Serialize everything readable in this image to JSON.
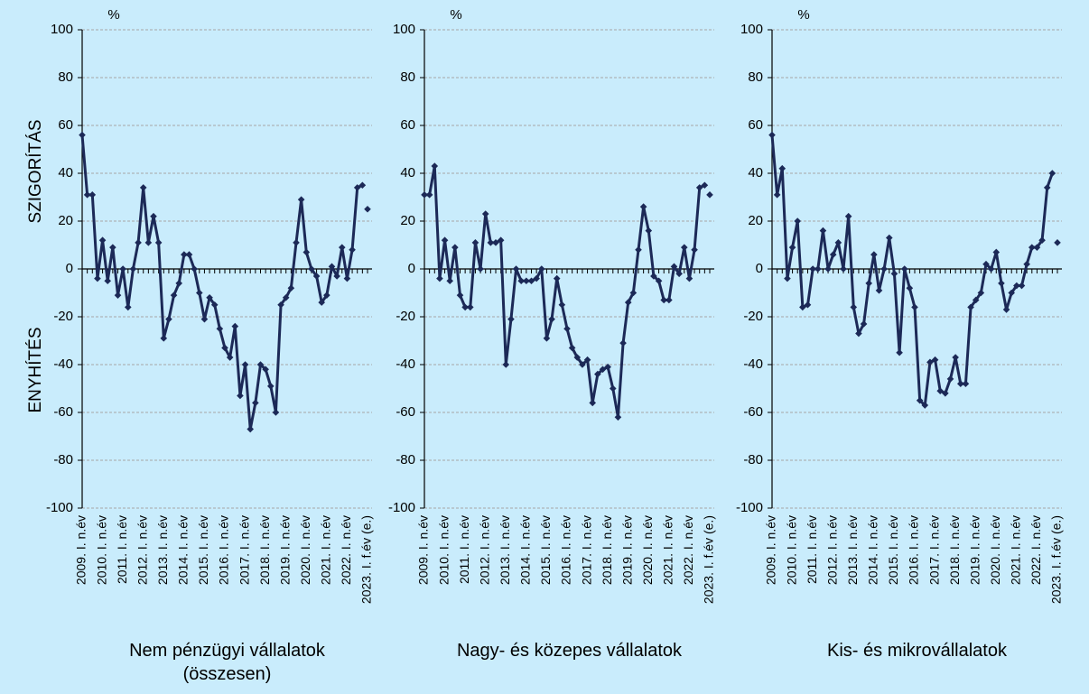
{
  "axis_labels": {
    "upper": "SZIGORÍTÁS",
    "lower": "ENYHÍTÉS"
  },
  "chart_data": [
    {
      "type": "line",
      "title": "Nem pénzügyi vállalatok (összesen)",
      "unit": "%",
      "categories": [
        "2009. I. n.év",
        null,
        null,
        null,
        "2010. I. n.év",
        null,
        null,
        null,
        "2011. I. n.év",
        null,
        null,
        null,
        "2012. I. n.év",
        null,
        null,
        null,
        "2013. I. n.év",
        null,
        null,
        null,
        "2014. I. n.év",
        null,
        null,
        null,
        "2015. I. n.év",
        null,
        null,
        null,
        "2016. I. n.év",
        null,
        null,
        null,
        "2017. I. n.év",
        null,
        null,
        null,
        "2018. I. n.év",
        null,
        null,
        null,
        "2019. I. n.év",
        null,
        null,
        null,
        "2020. I. n.év",
        null,
        null,
        null,
        "2021. I. n.év",
        null,
        null,
        null,
        "2022. I. n.év",
        null,
        null,
        null,
        "2023. I. f.év (e.)"
      ],
      "series": [
        {
          "color": "#1c2957",
          "line": true,
          "values": [
            56,
            31,
            31,
            -4,
            12,
            -5,
            9,
            -11,
            0,
            -16,
            0,
            11,
            34,
            11,
            22,
            11,
            -29,
            -21,
            -11,
            -6,
            6,
            6,
            0,
            -10,
            -21,
            -12,
            -15,
            -25,
            -33,
            -37,
            -24,
            -53,
            -40,
            -67,
            -56,
            -40,
            -42,
            -49,
            -60,
            -15,
            -12,
            -8,
            11,
            29,
            7,
            0,
            -3,
            -14,
            -11,
            1,
            -3,
            9,
            -4,
            8,
            34,
            35,
            null
          ]
        },
        {
          "color": "#1c2957",
          "line": false,
          "values": [
            null,
            null,
            null,
            null,
            null,
            null,
            null,
            null,
            null,
            null,
            null,
            null,
            null,
            null,
            null,
            null,
            null,
            null,
            null,
            null,
            null,
            null,
            null,
            null,
            null,
            null,
            null,
            null,
            null,
            null,
            null,
            null,
            null,
            null,
            null,
            null,
            null,
            null,
            null,
            null,
            null,
            null,
            null,
            null,
            null,
            null,
            null,
            null,
            null,
            null,
            null,
            null,
            null,
            null,
            null,
            null,
            25
          ]
        }
      ],
      "ylim": [
        -100,
        100
      ],
      "yticks": [
        -100,
        -80,
        -60,
        -40,
        -20,
        0,
        20,
        40,
        60,
        80,
        100
      ],
      "grid": true
    },
    {
      "type": "line",
      "title": "Nagy- és közepes vállalatok",
      "unit": "%",
      "categories": [
        "2009. I. n.év",
        null,
        null,
        null,
        "2010. I. n.év",
        null,
        null,
        null,
        "2011. I. n.év",
        null,
        null,
        null,
        "2012. I. n.év",
        null,
        null,
        null,
        "2013. I. n.év",
        null,
        null,
        null,
        "2014. I. n.év",
        null,
        null,
        null,
        "2015. I. n.év",
        null,
        null,
        null,
        "2016. I. n.év",
        null,
        null,
        null,
        "2017. I. n.év",
        null,
        null,
        null,
        "2018. I. n.év",
        null,
        null,
        null,
        "2019. I. n.év",
        null,
        null,
        null,
        "2020. I. n.év",
        null,
        null,
        null,
        "2021. I. n.év",
        null,
        null,
        null,
        "2022. I. n.év",
        null,
        null,
        null,
        "2023. I. f.év (e.)"
      ],
      "series": [
        {
          "color": "#1c2957",
          "line": true,
          "values": [
            31,
            31,
            43,
            -4,
            12,
            -5,
            9,
            -11,
            -16,
            -16,
            11,
            0,
            23,
            11,
            11,
            12,
            -40,
            -21,
            0,
            -5,
            -5,
            -5,
            -4,
            0,
            -29,
            -21,
            -4,
            -15,
            -25,
            -33,
            -37,
            -40,
            -38,
            -56,
            -44,
            -42,
            -41,
            -50,
            -62,
            -31,
            -14,
            -10,
            8,
            26,
            16,
            -3,
            -5,
            -13,
            -13,
            1,
            -2,
            9,
            -4,
            8,
            34,
            35,
            null
          ]
        },
        {
          "color": "#1c2957",
          "line": false,
          "values": [
            null,
            null,
            null,
            null,
            null,
            null,
            null,
            null,
            null,
            null,
            null,
            null,
            null,
            null,
            null,
            null,
            null,
            null,
            null,
            null,
            null,
            null,
            null,
            null,
            null,
            null,
            null,
            null,
            null,
            null,
            null,
            null,
            null,
            null,
            null,
            null,
            null,
            null,
            null,
            null,
            null,
            null,
            null,
            null,
            null,
            null,
            null,
            null,
            null,
            null,
            null,
            null,
            null,
            null,
            null,
            null,
            31
          ]
        }
      ],
      "ylim": [
        -100,
        100
      ],
      "yticks": [
        -100,
        -80,
        -60,
        -40,
        -20,
        0,
        20,
        40,
        60,
        80,
        100
      ],
      "grid": true
    },
    {
      "type": "line",
      "title": "Kis- és mikrovállalatok",
      "unit": "%",
      "categories": [
        "2009. I. n.év",
        null,
        null,
        null,
        "2010. I. n.év",
        null,
        null,
        null,
        "2011. I. n.év",
        null,
        null,
        null,
        "2012. I. n.év",
        null,
        null,
        null,
        "2013. I. n.év",
        null,
        null,
        null,
        "2014. I. n.év",
        null,
        null,
        null,
        "2015. I. n.év",
        null,
        null,
        null,
        "2016. I. n.év",
        null,
        null,
        null,
        "2017. I. n.év",
        null,
        null,
        null,
        "2018. I. n.év",
        null,
        null,
        null,
        "2019. I. n.év",
        null,
        null,
        null,
        "2020. I. n.év",
        null,
        null,
        null,
        "2021. I. n.év",
        null,
        null,
        null,
        "2022. I. n.év",
        null,
        null,
        null,
        "2023. I. f.év (e.)"
      ],
      "series": [
        {
          "color": "#1c2957",
          "line": true,
          "values": [
            56,
            31,
            42,
            -4,
            9,
            20,
            -16,
            -15,
            0,
            0,
            16,
            0,
            6,
            11,
            0,
            22,
            -16,
            -27,
            -23,
            -6,
            6,
            -9,
            0,
            13,
            -2,
            -35,
            0,
            -8,
            -16,
            -55,
            -57,
            -39,
            -38,
            -51,
            -52,
            -46,
            -37,
            -48,
            -48,
            -16,
            -13,
            -10,
            2,
            0,
            7,
            -6,
            -17,
            -10,
            -7,
            -7,
            2,
            9,
            9,
            12,
            34,
            40,
            null
          ]
        },
        {
          "color": "#1c2957",
          "line": false,
          "values": [
            null,
            null,
            null,
            null,
            null,
            null,
            null,
            null,
            null,
            null,
            null,
            null,
            null,
            null,
            null,
            null,
            null,
            null,
            null,
            null,
            null,
            null,
            null,
            null,
            null,
            null,
            null,
            null,
            null,
            null,
            null,
            null,
            null,
            null,
            null,
            null,
            null,
            null,
            null,
            null,
            null,
            null,
            null,
            null,
            null,
            null,
            null,
            null,
            null,
            null,
            null,
            null,
            null,
            null,
            null,
            null,
            11
          ]
        }
      ],
      "ylim": [
        -100,
        100
      ],
      "yticks": [
        -100,
        -80,
        -60,
        -40,
        -20,
        0,
        20,
        40,
        60,
        80,
        100
      ],
      "grid": true
    }
  ]
}
